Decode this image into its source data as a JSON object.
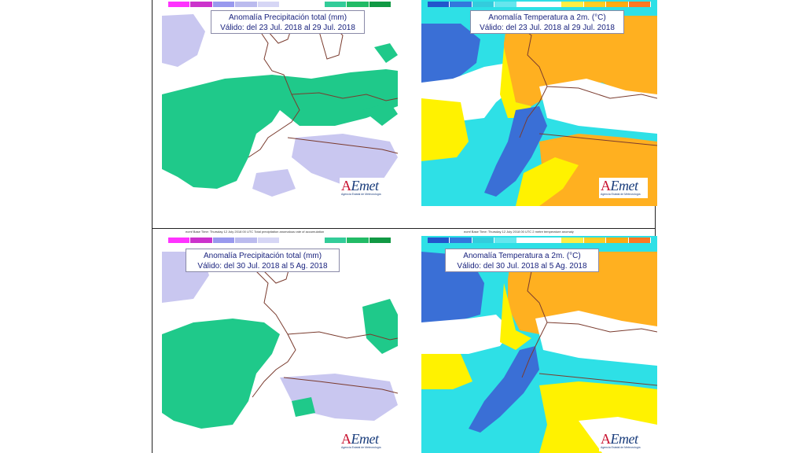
{
  "panels": [
    {
      "title_line1": "Anomalía Precipitación total (mm)",
      "title_line2": "Válido: del 23 Jul. 2018 al 29 Jul. 2018",
      "legend_colors": [
        "#ff33ff",
        "#cc33cc",
        "#9999ee",
        "#bbbbee",
        "#d6d6f5",
        "#ffffff",
        "#ffffff",
        "#33cc99",
        "#22bb66",
        "#119944"
      ],
      "map_type": "precipitation"
    },
    {
      "title_line1": "Anomalía Temperatura a 2m. (°C)",
      "title_line2": "Válido: del 23 Jul. 2018 al 29 Jul. 2018",
      "legend_colors": [
        "#2255cc",
        "#3377dd",
        "#33ccdd",
        "#66e6ee",
        "#ffffff",
        "#ffffff",
        "#ffee44",
        "#ffcc22",
        "#ffaa11",
        "#ff7722"
      ],
      "map_type": "temperature"
    },
    {
      "title_line1": "Anomalía Precipitación total (mm)",
      "title_line2": "Válido: del 30 Jul. 2018 al 5 Ag. 2018",
      "legend_colors": [
        "#ff33ff",
        "#cc33cc",
        "#9999ee",
        "#bbbbee",
        "#d6d6f5",
        "#ffffff",
        "#ffffff",
        "#33cc99",
        "#22bb66",
        "#119944"
      ],
      "map_type": "precipitation"
    },
    {
      "title_line1": "Anomalía Temperatura a 2m. (°C)",
      "title_line2": "Válido: del 30 Jul. 2018 al 5 Ag. 2018",
      "legend_colors": [
        "#2255cc",
        "#3377dd",
        "#33ccdd",
        "#66e6ee",
        "#ffffff",
        "#ffffff",
        "#ffee44",
        "#ffcc22",
        "#ffaa11",
        "#ff7722"
      ],
      "map_type": "temperature"
    }
  ],
  "basetime_left": "ecmf Base Time: Thursday 12 July 2018 00 UTC Total precipitation anomalous rate of accumulation",
  "basetime_right": "ecmf Base Time: Thursday 12 July 2018 00 UTC 2 metre temperature anomaly",
  "logo": {
    "word_a": "A",
    "word_rest": "Emet",
    "subtitle": "Agencia Estatal de Meteorología"
  },
  "colors": {
    "precip_green": "#1fc98a",
    "precip_lavender": "#c9c7f0",
    "temp_blue": "#3a6fd6",
    "temp_cyan": "#2ee0e6",
    "temp_yellow": "#fff200",
    "temp_orange": "#ffb020",
    "coast": "#7a3b2e"
  }
}
